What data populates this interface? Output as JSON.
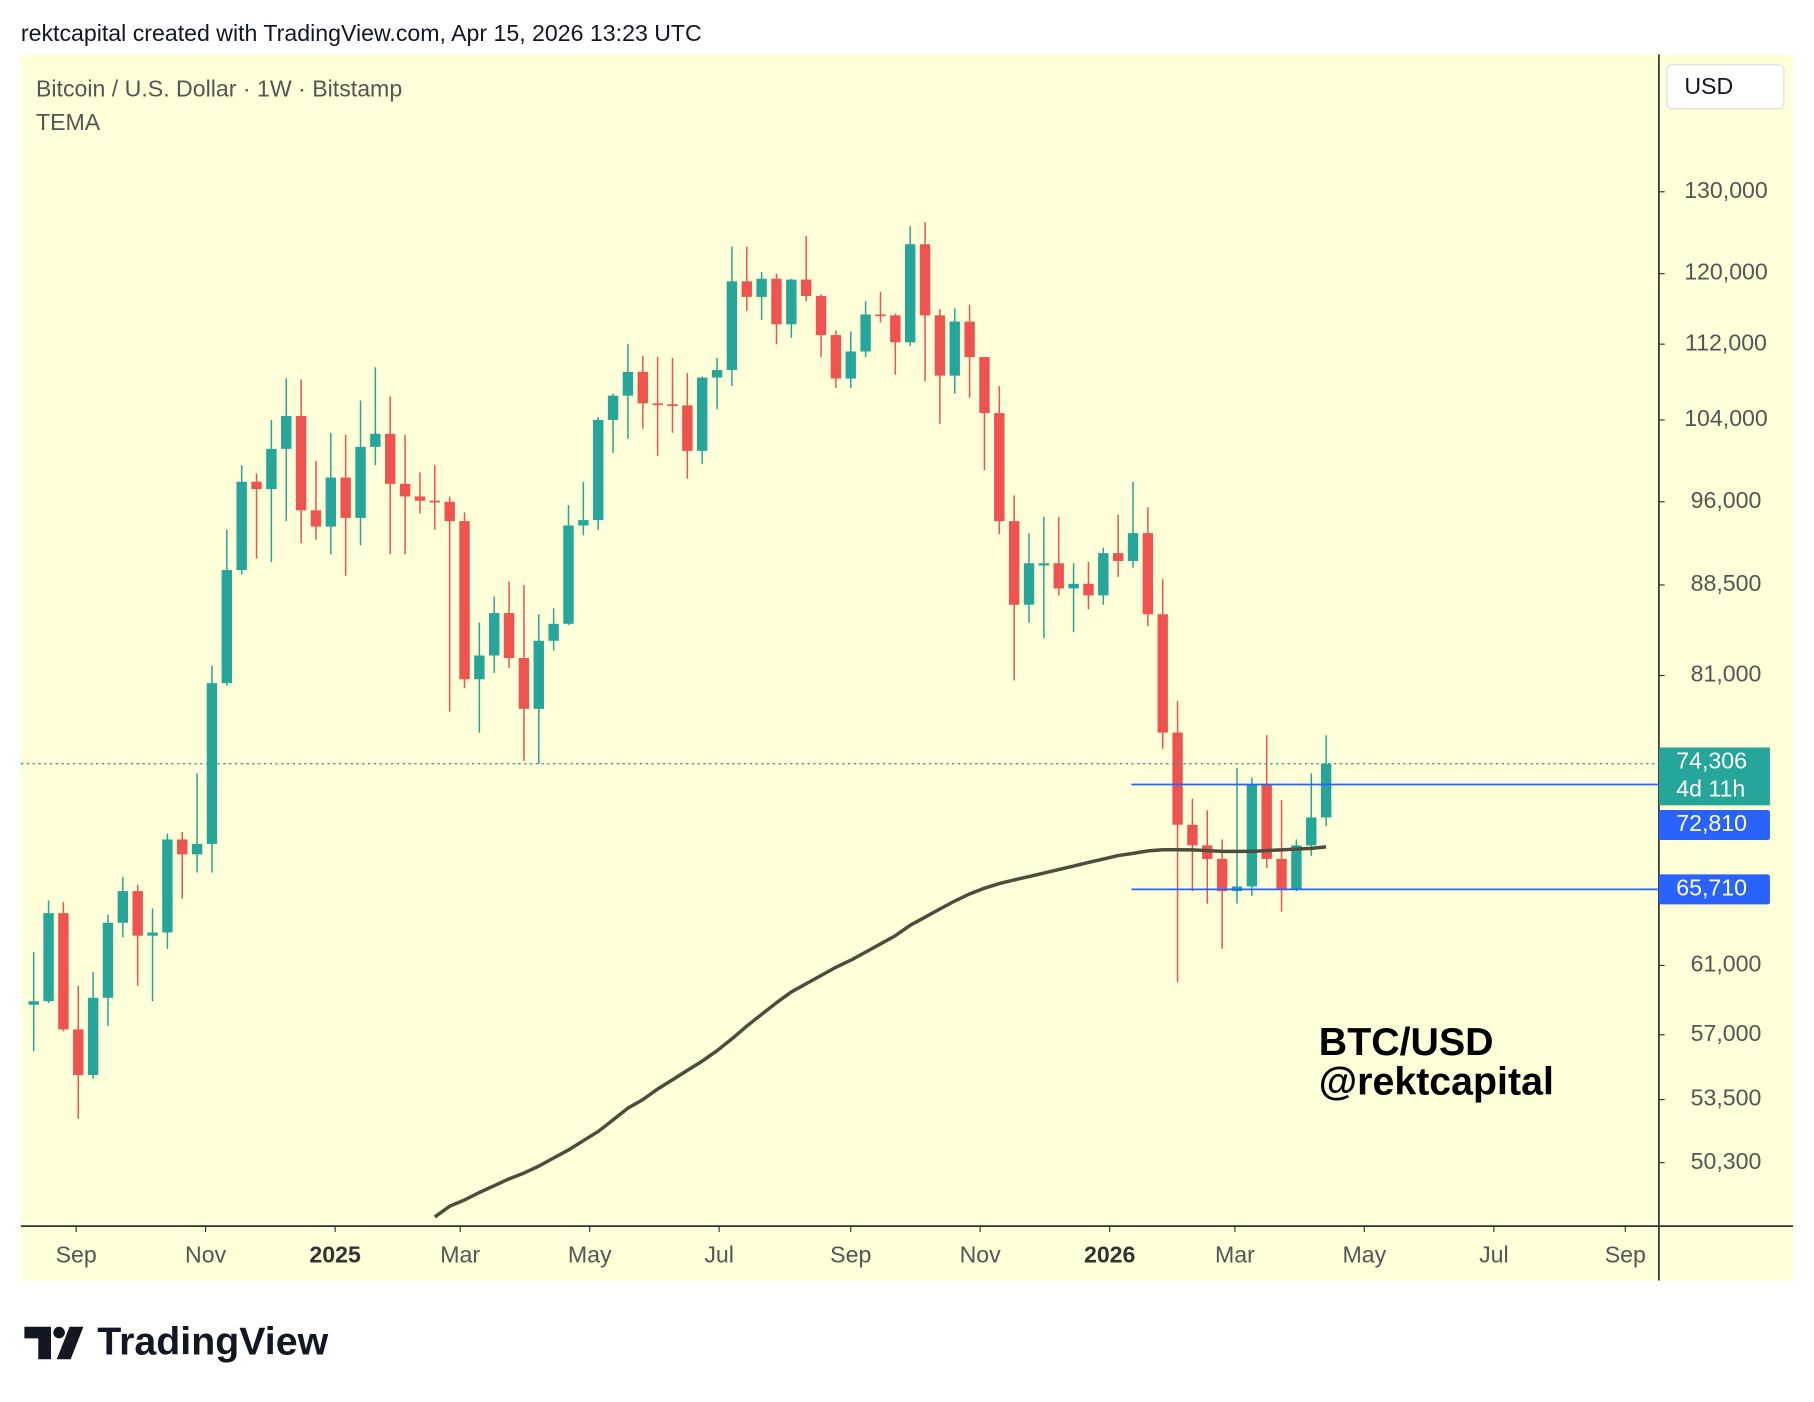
{
  "header": "rektcapital created with TradingView.com, Apr 15, 2026 13:23 UTC",
  "brand": "TradingView",
  "chart_data": {
    "type": "candlestick",
    "title": "Bitcoin / U.S. Dollar · 1W · Bitstamp",
    "currency": "USD",
    "annotation": [
      "BTC/USD",
      "@rektcapital"
    ],
    "up_color": "#26a69a",
    "down_color": "#ef5350",
    "open": [
      58700,
      58900,
      64200,
      57300,
      54800,
      59100,
      63600,
      65600,
      62800,
      63000,
      69000,
      68000,
      68700,
      80400,
      89800,
      97900,
      97200,
      101100,
      104400,
      95200,
      93700,
      98300,
      94500,
      101300,
      102600,
      97700,
      96500,
      96100,
      96000,
      94200,
      80700,
      82600,
      86100,
      82400,
      78400,
      83800,
      85200,
      93800,
      94300,
      104000,
      106500,
      109000,
      105700,
      105600,
      105500,
      100900,
      108400,
      109200,
      119100,
      117300,
      119400,
      114200,
      119300,
      117400,
      113000,
      108300,
      111200,
      115300,
      115200,
      112200,
      123500,
      115200,
      108600,
      114500,
      110600,
      104700,
      94200,
      86800,
      90200,
      90400,
      88200,
      88600,
      87600,
      91300,
      90600,
      93100,
      86000,
      76600,
      70000,
      68600,
      67700,
      65600,
      65900,
      72800,
      67700,
      65700,
      68600,
      70500
    ],
    "high": [
      61800,
      65000,
      64900,
      59800,
      60600,
      64100,
      66500,
      66000,
      64500,
      69400,
      69500,
      73600,
      81800,
      93400,
      99500,
      98700,
      104000,
      108300,
      108200,
      99900,
      102700,
      102500,
      106000,
      109500,
      106400,
      102500,
      98800,
      99500,
      96500,
      95000,
      85300,
      87500,
      88800,
      88500,
      86000,
      86500,
      95700,
      97900,
      104300,
      106700,
      112000,
      110700,
      110600,
      110500,
      108900,
      108500,
      110500,
      123200,
      123200,
      120200,
      120000,
      119400,
      124500,
      117600,
      113500,
      113400,
      116800,
      117900,
      115400,
      125700,
      126200,
      115900,
      116000,
      116400,
      110600,
      107500,
      96600,
      93100,
      94600,
      94600,
      90400,
      90500,
      91800,
      94800,
      97900,
      95500,
      89000,
      79000,
      71800,
      71000,
      69000,
      74000,
      73300,
      76400,
      71700,
      69000,
      73600,
      76400
    ],
    "low": [
      56100,
      58800,
      57200,
      52500,
      54600,
      57500,
      62700,
      59800,
      58900,
      62000,
      65100,
      66800,
      66800,
      80200,
      89400,
      90800,
      90500,
      94200,
      92200,
      92500,
      91200,
      89300,
      92000,
      99500,
      91200,
      91200,
      94900,
      93400,
      78200,
      80000,
      76600,
      81200,
      81600,
      74500,
      74300,
      83000,
      85100,
      92900,
      93400,
      100700,
      102100,
      103100,
      100400,
      102700,
      98200,
      99600,
      105100,
      107500,
      115700,
      114700,
      112000,
      112700,
      116800,
      110600,
      107300,
      107300,
      110600,
      114400,
      108700,
      111800,
      108000,
      103600,
      106700,
      106300,
      99000,
      93000,
      80600,
      85300,
      84000,
      87600,
      84500,
      86400,
      86800,
      89200,
      90000,
      85000,
      75400,
      60000,
      65600,
      64800,
      62000,
      64800,
      65300,
      67100,
      64300,
      65600,
      67900,
      69900
    ],
    "close": [
      58900,
      64200,
      57300,
      54800,
      59100,
      63600,
      65600,
      62800,
      63000,
      69000,
      68000,
      68700,
      80400,
      89800,
      97900,
      97200,
      101100,
      104400,
      95200,
      93700,
      98300,
      94500,
      101300,
      102600,
      97700,
      96500,
      96100,
      96000,
      94200,
      80700,
      82600,
      86100,
      82400,
      78400,
      83800,
      85200,
      93800,
      94300,
      104000,
      106500,
      109000,
      105700,
      105600,
      105500,
      100900,
      108400,
      109200,
      119100,
      117300,
      119400,
      114200,
      119300,
      117400,
      113000,
      108300,
      111200,
      115300,
      115200,
      112200,
      123500,
      115200,
      108600,
      114500,
      110600,
      104700,
      94200,
      86800,
      90400,
      90400,
      88200,
      88600,
      87600,
      91300,
      90600,
      93100,
      86000,
      76600,
      70000,
      68600,
      67700,
      65600,
      65900,
      72800,
      67700,
      65700,
      68600,
      70500,
      74306
    ],
    "series": [
      {
        "name": "TEMA",
        "color": "#4d4d3d",
        "values": [
          null,
          null,
          null,
          null,
          null,
          null,
          null,
          null,
          null,
          null,
          null,
          null,
          null,
          null,
          null,
          null,
          null,
          null,
          null,
          null,
          null,
          null,
          null,
          null,
          null,
          null,
          null,
          47700,
          48200,
          48500,
          48850,
          49180,
          49510,
          49790,
          50130,
          50530,
          50930,
          51390,
          51860,
          52450,
          53050,
          53500,
          54050,
          54550,
          55050,
          55550,
          56120,
          56770,
          57490,
          58150,
          58820,
          59440,
          59920,
          60400,
          60890,
          61310,
          61800,
          62300,
          62800,
          63440,
          63950,
          64460,
          64970,
          65420,
          65790,
          66090,
          66320,
          66540,
          66770,
          67000,
          67230,
          67460,
          67690,
          67920,
          68070,
          68230,
          68310,
          68310,
          68300,
          68250,
          68200,
          68200,
          68200,
          68250,
          68300,
          68350,
          68400,
          68500
        ]
      }
    ],
    "last": {
      "label": "74,306",
      "countdown": "4d 11h"
    },
    "levels": [
      {
        "value": 72810,
        "label": "72,810"
      },
      {
        "value": 65710,
        "label": "65,710"
      }
    ],
    "level_color": "#2962ff",
    "log_scale": true,
    "ylim": [
      47270,
      148700
    ],
    "yticks": [
      {
        "value": 50300,
        "label": "50,300"
      },
      {
        "value": 53500,
        "label": "53,500"
      },
      {
        "value": 57000,
        "label": "57,000"
      },
      {
        "value": 61000,
        "label": "61,000"
      },
      {
        "value": 81000,
        "label": "81,000"
      },
      {
        "value": 88500,
        "label": "88,500"
      },
      {
        "value": 96000,
        "label": "96,000"
      },
      {
        "value": 104000,
        "label": "104,000"
      },
      {
        "value": 112000,
        "label": "112,000"
      },
      {
        "value": 120000,
        "label": "120,000"
      },
      {
        "value": 130000,
        "label": "130,000"
      }
    ],
    "xlim": [
      -0.86,
      109.4
    ],
    "xticks": [
      {
        "value": 2.86,
        "label": "Sep"
      },
      {
        "value": 11.57,
        "label": "Nov"
      },
      {
        "value": 20.29,
        "label": "2025"
      },
      {
        "value": 28.71,
        "label": "Mar"
      },
      {
        "value": 37.43,
        "label": "May"
      },
      {
        "value": 46.14,
        "label": "Jul"
      },
      {
        "value": 55,
        "label": "Sep"
      },
      {
        "value": 63.71,
        "label": "Nov"
      },
      {
        "value": 72.43,
        "label": "2026"
      },
      {
        "value": 80.86,
        "label": "Mar"
      },
      {
        "value": 89.57,
        "label": "May"
      },
      {
        "value": 98.29,
        "label": "Jul"
      },
      {
        "value": 107.14,
        "label": "Sep"
      }
    ]
  }
}
